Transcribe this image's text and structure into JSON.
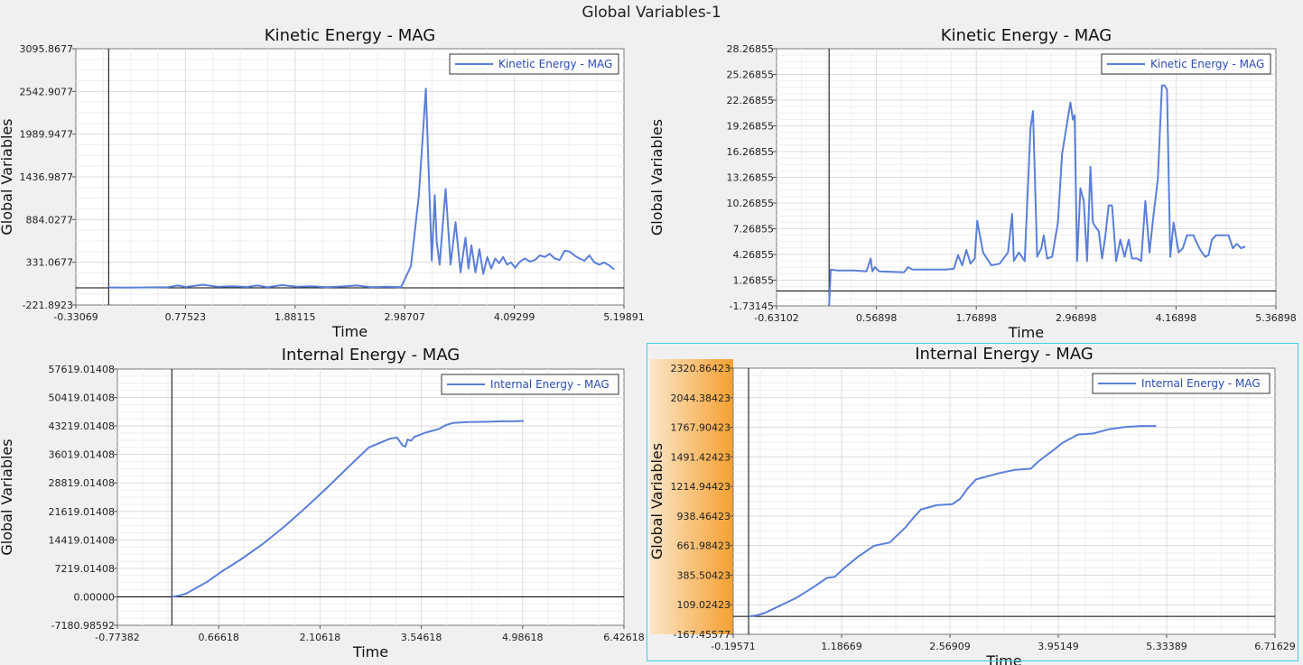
{
  "window": {
    "title": "Global Variables-1"
  },
  "colors": {
    "series": "#5b7fd8",
    "axis": "#000000",
    "grid": "#dcdcdc",
    "highlight_axis": "#f5a030",
    "selection": "#3fd0e0"
  },
  "chart_data": [
    {
      "type": "line",
      "title": "Kinetic Energy - MAG",
      "xlabel": "Time",
      "ylabel": "Global Variables",
      "xlim": [
        -0.33069,
        5.19891
      ],
      "ylim": [
        -221.8923,
        3095.8677
      ],
      "xticks": [
        "-0.33069",
        "0.77523",
        "1.88115",
        "2.98707",
        "4.09299",
        "5.19891"
      ],
      "yticks": [
        "-221.8923",
        "331.0677",
        "884.0277",
        "1436.9877",
        "1989.9477",
        "2542.9077",
        "3095.8677"
      ],
      "legend": "top-right",
      "grid": true,
      "series": [
        {
          "name": "Kinetic Energy - MAG",
          "x": [
            0.0,
            0.2,
            0.4,
            0.6,
            0.7,
            0.78,
            0.86,
            0.95,
            1.1,
            1.25,
            1.4,
            1.5,
            1.6,
            1.75,
            1.9,
            2.05,
            2.2,
            2.35,
            2.5,
            2.65,
            2.8,
            2.95,
            3.05,
            3.13,
            3.2,
            3.26,
            3.29,
            3.31,
            3.34,
            3.37,
            3.4,
            3.45,
            3.5,
            3.55,
            3.6,
            3.63,
            3.66,
            3.7,
            3.74,
            3.78,
            3.82,
            3.86,
            3.9,
            3.94,
            3.98,
            4.02,
            4.06,
            4.1,
            4.15,
            4.2,
            4.25,
            4.3,
            4.35,
            4.4,
            4.45,
            4.5,
            4.55,
            4.6,
            4.65,
            4.7,
            4.75,
            4.8,
            4.85,
            4.9,
            4.95,
            5.0,
            5.05,
            5.1
          ],
          "y": [
            5,
            4,
            6,
            10,
            30,
            12,
            25,
            40,
            15,
            20,
            12,
            30,
            10,
            35,
            15,
            20,
            8,
            18,
            30,
            10,
            15,
            8,
            280,
            1200,
            2580,
            350,
            1200,
            600,
            300,
            800,
            1280,
            300,
            850,
            200,
            650,
            250,
            550,
            200,
            500,
            180,
            400,
            250,
            380,
            320,
            400,
            300,
            330,
            260,
            340,
            380,
            340,
            360,
            420,
            400,
            440,
            380,
            360,
            480,
            470,
            420,
            380,
            350,
            420,
            330,
            300,
            330,
            290,
            240
          ]
        }
      ]
    },
    {
      "type": "line",
      "title": "Kinetic Energy - MAG",
      "xlabel": "Time",
      "ylabel": "Global Variables",
      "xlim": [
        -0.63102,
        5.36898
      ],
      "ylim": [
        -1.73145,
        28.26855
      ],
      "xticks": [
        "-0.63102",
        "0.56898",
        "1.76898",
        "2.96898",
        "4.16898",
        "5.36898"
      ],
      "yticks": [
        "-1.73145",
        "1.26855",
        "4.26855",
        "7.26855",
        "10.26855",
        "13.26855",
        "16.26855",
        "19.26855",
        "22.26855",
        "25.26855",
        "28.26855"
      ],
      "legend": "top-right",
      "grid": true,
      "series": [
        {
          "name": "Kinetic Energy - MAG",
          "x": [
            0.0,
            0.02,
            0.1,
            0.3,
            0.45,
            0.5,
            0.52,
            0.55,
            0.6,
            0.9,
            0.95,
            1.0,
            1.2,
            1.4,
            1.5,
            1.55,
            1.6,
            1.65,
            1.7,
            1.75,
            1.78,
            1.85,
            1.95,
            2.05,
            2.15,
            2.2,
            2.22,
            2.28,
            2.35,
            2.42,
            2.45,
            2.5,
            2.55,
            2.58,
            2.62,
            2.68,
            2.75,
            2.8,
            2.9,
            2.93,
            2.95,
            2.98,
            3.02,
            3.06,
            3.1,
            3.14,
            3.17,
            3.2,
            3.24,
            3.28,
            3.32,
            3.36,
            3.4,
            3.45,
            3.5,
            3.55,
            3.6,
            3.64,
            3.7,
            3.75,
            3.8,
            3.85,
            3.9,
            3.95,
            4.0,
            4.03,
            4.06,
            4.1,
            4.14,
            4.2,
            4.25,
            4.3,
            4.32,
            4.38,
            4.4,
            4.45,
            4.48,
            4.52,
            4.56,
            4.6,
            4.65,
            4.72,
            4.8,
            4.85,
            4.9,
            4.95,
            5.0
          ],
          "y": [
            -1.7,
            2.5,
            2.4,
            2.4,
            2.3,
            3.8,
            2.3,
            2.8,
            2.3,
            2.2,
            2.8,
            2.5,
            2.5,
            2.5,
            2.6,
            4.2,
            3.0,
            4.8,
            3.2,
            3.8,
            8.2,
            4.5,
            3.0,
            3.2,
            4.5,
            9.0,
            3.5,
            4.5,
            3.5,
            19.0,
            21.0,
            4.0,
            5.0,
            6.5,
            3.8,
            4.0,
            8.0,
            16.0,
            22.0,
            20.0,
            20.5,
            3.5,
            12.0,
            10.5,
            3.5,
            14.5,
            8.0,
            7.5,
            7.0,
            3.8,
            6.5,
            10.0,
            10.0,
            3.5,
            6.0,
            4.0,
            6.0,
            3.8,
            3.8,
            3.5,
            10.5,
            4.5,
            9.0,
            13.0,
            24.0,
            24.0,
            23.5,
            4.0,
            8.0,
            4.5,
            5.0,
            6.5,
            6.5,
            6.5,
            6.0,
            5.0,
            4.5,
            4.0,
            4.2,
            6.0,
            6.5,
            6.5,
            6.5,
            5.0,
            5.5,
            5.0,
            5.2
          ]
        }
      ]
    },
    {
      "type": "line",
      "title": "Internal Energy - MAG",
      "xlabel": "Time",
      "ylabel": "Global Variables",
      "xlim": [
        -0.77382,
        6.42618
      ],
      "ylim": [
        -7180.98592,
        57619.01408
      ],
      "xticks": [
        "-0.77382",
        "0.66618",
        "2.10618",
        "3.54618",
        "4.98618",
        "6.42618"
      ],
      "yticks": [
        "-7180.98592",
        "0.00000",
        "7219.01408",
        "14419.01408",
        "21619.01408",
        "28819.01408",
        "36019.01408",
        "43219.01408",
        "50419.01408",
        "57619.01408"
      ],
      "legend": "top-right",
      "grid": true,
      "series": [
        {
          "name": "Internal Energy - MAG",
          "x": [
            0.0,
            0.1,
            0.2,
            0.3,
            0.5,
            0.7,
            1.0,
            1.3,
            1.6,
            1.9,
            2.2,
            2.5,
            2.8,
            3.1,
            3.2,
            3.28,
            3.32,
            3.35,
            3.4,
            3.45,
            3.5,
            3.6,
            3.7,
            3.8,
            3.9,
            4.0,
            4.2,
            4.5,
            4.7,
            4.9,
            5.0
          ],
          "y": [
            0,
            300,
            800,
            1800,
            3800,
            6300,
            9700,
            13500,
            17800,
            22500,
            27500,
            32700,
            37800,
            40000,
            40300,
            38300,
            38000,
            39800,
            39500,
            40500,
            40800,
            41500,
            42000,
            42500,
            43500,
            44000,
            44200,
            44300,
            44400,
            44400,
            44500
          ]
        }
      ]
    },
    {
      "type": "line",
      "title": "Internal Energy - MAG",
      "xlabel": "Time",
      "ylabel": "Global Variables",
      "xlim": [
        -0.19571,
        6.71629
      ],
      "ylim": [
        -167.45577,
        2320.86423
      ],
      "xticks": [
        "-0.19571",
        "1.18669",
        "2.56909",
        "3.95149",
        "5.33389",
        "6.71629"
      ],
      "yticks": [
        "-167.45577",
        "109.02423",
        "385.50423",
        "661.98423",
        "938.46423",
        "1214.94423",
        "1491.42423",
        "1767.90423",
        "2044.38423",
        "2320.86423"
      ],
      "legend": "top-right",
      "grid": true,
      "series": [
        {
          "name": "Internal Energy - MAG",
          "x": [
            0.0,
            0.1,
            0.2,
            0.4,
            0.6,
            0.8,
            1.0,
            1.1,
            1.2,
            1.4,
            1.6,
            1.8,
            2.0,
            2.1,
            2.2,
            2.4,
            2.6,
            2.7,
            2.8,
            2.9,
            3.0,
            3.2,
            3.4,
            3.6,
            3.7,
            3.9,
            4.0,
            4.2,
            4.4,
            4.6,
            4.8,
            5.0,
            5.2
          ],
          "y": [
            0,
            10,
            30,
            100,
            170,
            260,
            360,
            370,
            440,
            560,
            660,
            690,
            830,
            920,
            1000,
            1040,
            1050,
            1100,
            1200,
            1280,
            1300,
            1340,
            1370,
            1380,
            1450,
            1560,
            1620,
            1700,
            1710,
            1750,
            1770,
            1780,
            1780
          ]
        }
      ]
    }
  ]
}
